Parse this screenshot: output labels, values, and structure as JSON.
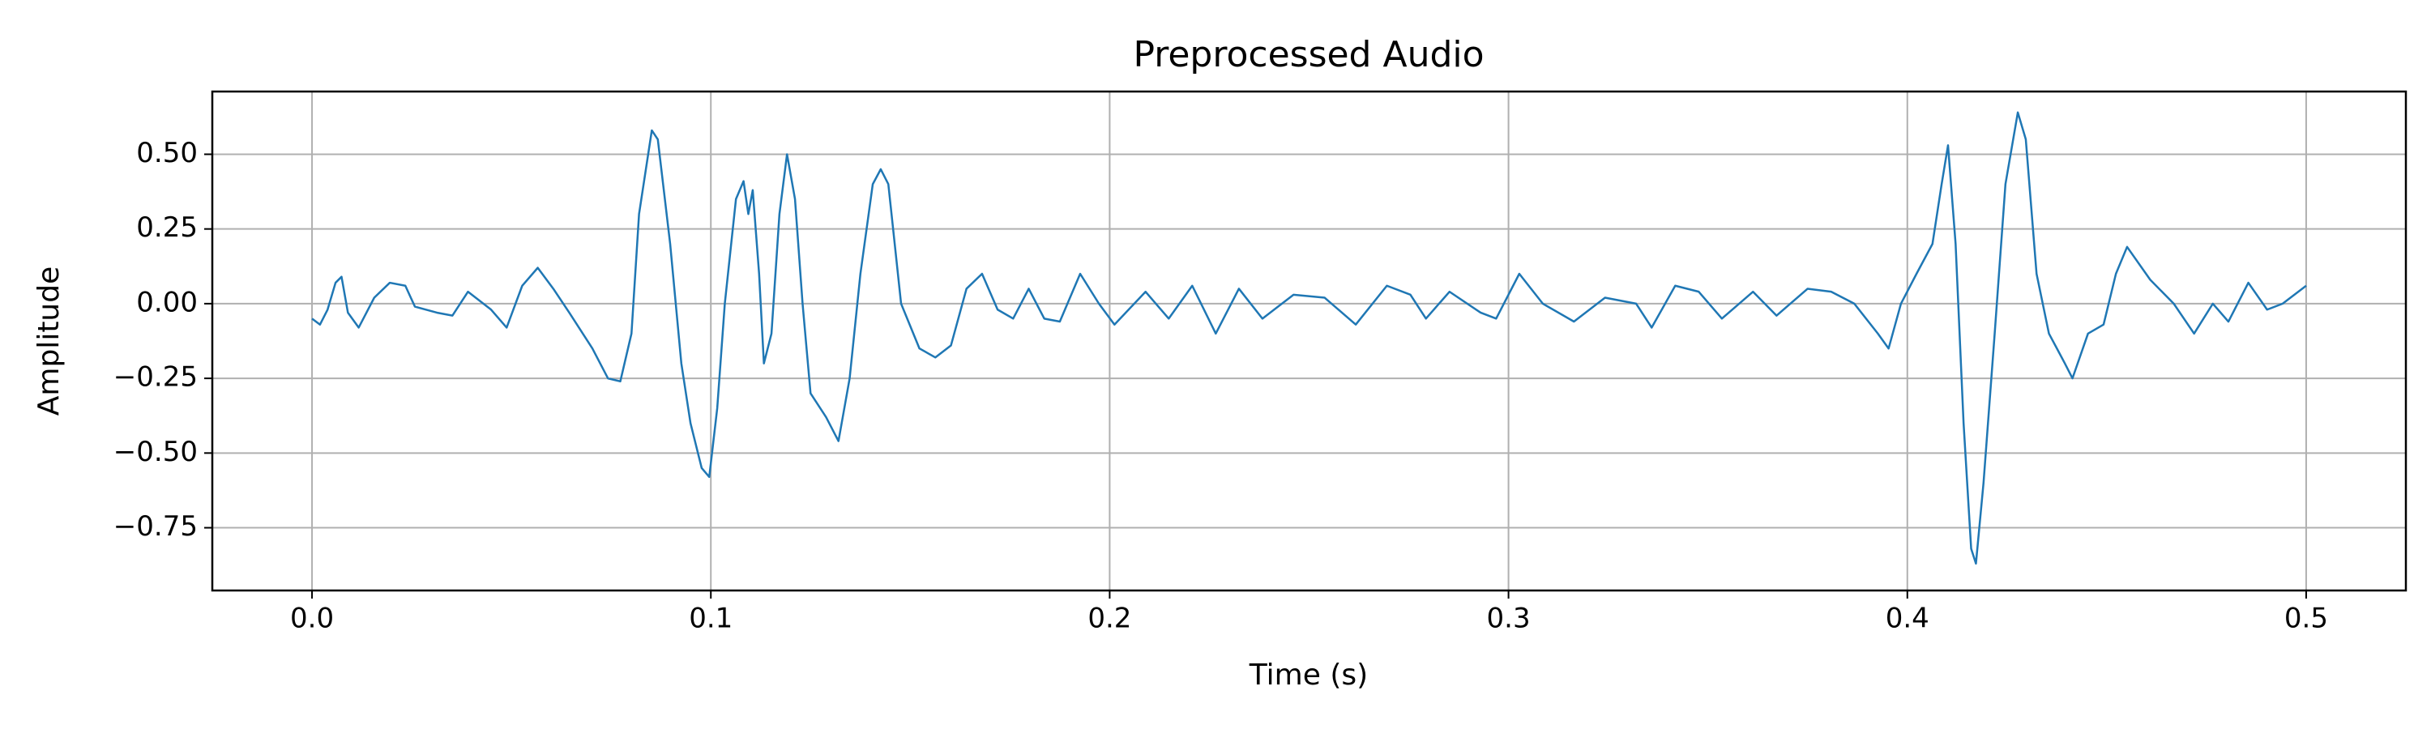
{
  "chart_data": {
    "type": "line",
    "title": "Preprocessed Audio",
    "xlabel": "Time (s)",
    "ylabel": "Amplitude",
    "color": "#1f77b4",
    "grid": true,
    "xlim": [
      -0.025,
      0.525
    ],
    "ylim": [
      -0.96,
      0.71
    ],
    "xticks": [
      {
        "value": 0,
        "label": "0.0"
      },
      0.1,
      0.2,
      0.3,
      0.4,
      0.5
    ],
    "yticks": [
      {
        "value": -0.75,
        "label": "−0.75"
      },
      {
        "value": -0.5,
        "label": "−0.50"
      },
      {
        "value": -0.25,
        "label": "−0.25"
      },
      {
        "value": 0,
        "label": "0.00"
      },
      {
        "value": 0.25,
        "label": "0.25"
      },
      {
        "value": 0.5,
        "label": "0.50"
      }
    ],
    "x": [
      0,
      0.002,
      0.0039,
      0.0059,
      0.0074,
      0.009,
      0.0117,
      0.0156,
      0.0195,
      0.0234,
      0.0258,
      0.0313,
      0.0352,
      0.0391,
      0.0449,
      0.0488,
      0.0527,
      0.0566,
      0.0605,
      0.0645,
      0.0703,
      0.0742,
      0.0773,
      0.0801,
      0.082,
      0.0852,
      0.0867,
      0.0898,
      0.0926,
      0.0949,
      0.0977,
      0.0996,
      0.1016,
      0.1035,
      0.1063,
      0.1082,
      0.1094,
      0.1105,
      0.1121,
      0.1133,
      0.1152,
      0.1172,
      0.1191,
      0.1211,
      0.123,
      0.125,
      0.1289,
      0.132,
      0.1348,
      0.1375,
      0.1406,
      0.1426,
      0.1445,
      0.1477,
      0.1523,
      0.1563,
      0.1602,
      0.1641,
      0.168,
      0.1719,
      0.1758,
      0.1797,
      0.1836,
      0.1875,
      0.1926,
      0.1973,
      0.2012,
      0.209,
      0.2148,
      0.2207,
      0.2266,
      0.2324,
      0.2383,
      0.2461,
      0.2539,
      0.2617,
      0.2695,
      0.2754,
      0.2793,
      0.2852,
      0.293,
      0.2969,
      0.3027,
      0.3086,
      0.3164,
      0.3242,
      0.332,
      0.3359,
      0.3418,
      0.3477,
      0.3535,
      0.3613,
      0.3672,
      0.375,
      0.3809,
      0.3867,
      0.3926,
      0.3953,
      0.3984,
      0.4023,
      0.4063,
      0.4086,
      0.4102,
      0.4121,
      0.4141,
      0.416,
      0.4172,
      0.4191,
      0.4219,
      0.4246,
      0.4277,
      0.4297,
      0.4324,
      0.4355,
      0.4395,
      0.4414,
      0.4453,
      0.4492,
      0.4523,
      0.4551,
      0.4609,
      0.4668,
      0.4719,
      0.4766,
      0.4805,
      0.4855,
      0.4902,
      0.4941,
      0.5
    ],
    "values": [
      -0.05,
      -0.07,
      -0.02,
      0.07,
      0.09,
      -0.03,
      -0.08,
      0.02,
      0.07,
      0.06,
      -0.01,
      -0.03,
      -0.04,
      0.04,
      -0.02,
      -0.08,
      0.06,
      0.12,
      0.05,
      -0.03,
      -0.15,
      -0.25,
      -0.26,
      -0.1,
      0.3,
      0.58,
      0.55,
      0.2,
      -0.2,
      -0.4,
      -0.55,
      -0.58,
      -0.35,
      0.0,
      0.35,
      0.41,
      0.3,
      0.38,
      0.1,
      -0.2,
      -0.1,
      0.3,
      0.5,
      0.35,
      0.0,
      -0.3,
      -0.38,
      -0.46,
      -0.25,
      0.1,
      0.4,
      0.45,
      0.4,
      0.0,
      -0.15,
      -0.18,
      -0.14,
      0.05,
      0.1,
      -0.02,
      -0.05,
      0.05,
      -0.05,
      -0.06,
      0.1,
      0.0,
      -0.07,
      0.04,
      -0.05,
      0.06,
      -0.1,
      0.05,
      -0.05,
      0.03,
      0.02,
      -0.07,
      0.06,
      0.03,
      -0.05,
      0.04,
      -0.03,
      -0.05,
      0.1,
      0.0,
      -0.06,
      0.02,
      0.0,
      -0.08,
      0.06,
      0.04,
      -0.05,
      0.04,
      -0.04,
      0.05,
      0.04,
      0.0,
      -0.1,
      -0.15,
      0.0,
      0.1,
      0.2,
      0.4,
      0.53,
      0.2,
      -0.4,
      -0.82,
      -0.87,
      -0.6,
      -0.1,
      0.4,
      0.64,
      0.55,
      0.1,
      -0.1,
      -0.2,
      -0.25,
      -0.1,
      -0.07,
      0.1,
      0.19,
      0.08,
      0.0,
      -0.1,
      0.0,
      -0.06,
      0.07,
      -0.02,
      0.0,
      0.06
    ]
  }
}
